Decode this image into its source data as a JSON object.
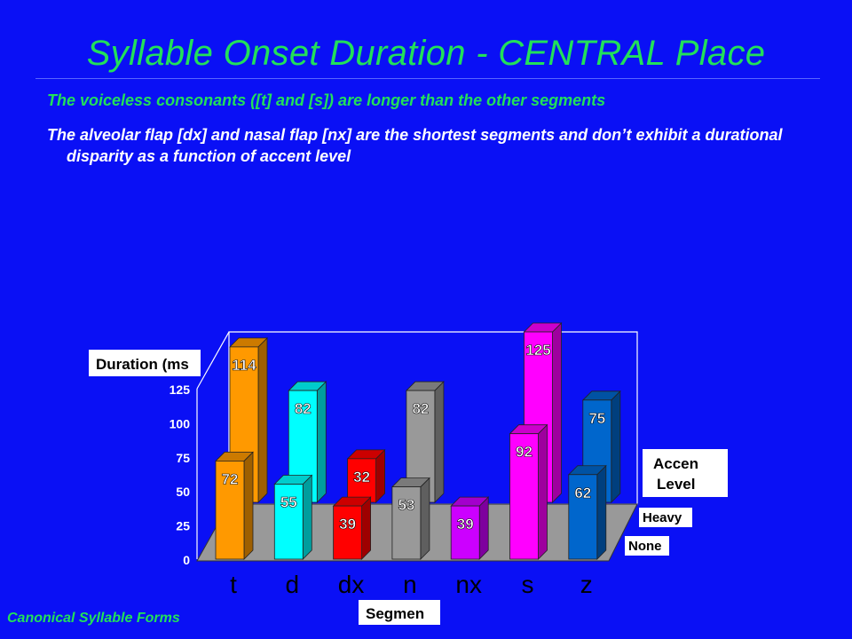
{
  "slide": {
    "title": "Syllable Onset Duration - CENTRAL Place",
    "bullet1": "The voiceless consonants ([t] and [s]) are longer than the other segments",
    "bullet2": "The alveolar flap [dx] and nasal flap [nx] are the shortest segments and don’t exhibit a durational disparity as a function of accent level",
    "footer": "Canonical Syllable Forms"
  },
  "chart_data": {
    "type": "bar",
    "title": "",
    "ylabel": "Duration (ms",
    "xlabel": "Segmen",
    "legend_title": [
      "Accen",
      "Level"
    ],
    "ylim": [
      0,
      125
    ],
    "yticks": [
      0,
      25,
      50,
      75,
      100,
      125
    ],
    "categories": [
      "t",
      "d",
      "dx",
      "n",
      "nx",
      "s",
      "z"
    ],
    "colors": [
      "#ff9900",
      "#00ffff",
      "#ff0000",
      "#999999",
      "#cc00ff",
      "#ff00ff",
      "#0066cc"
    ],
    "series": [
      {
        "name": "Heavy",
        "values": [
          114,
          82,
          32,
          82,
          null,
          125,
          75
        ]
      },
      {
        "name": "None",
        "values": [
          72,
          55,
          39,
          53,
          39,
          92,
          62
        ]
      }
    ]
  }
}
